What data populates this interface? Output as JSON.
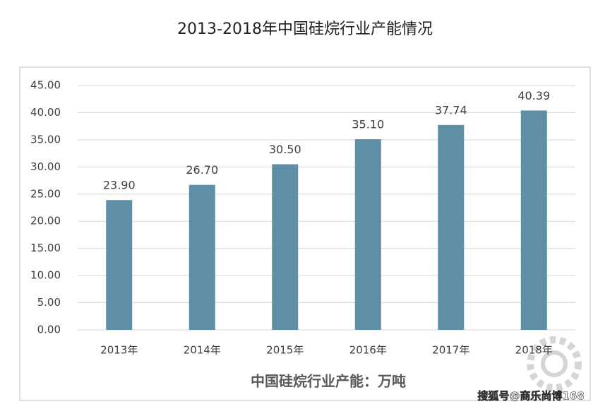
{
  "chart_data": {
    "type": "bar",
    "title": "2013-2018年中国硅烷行业产能情况",
    "x_label": "中国硅烷行业产能：万吨",
    "categories": [
      "2013年",
      "2014年",
      "2015年",
      "2016年",
      "2017年",
      "2018年"
    ],
    "values": [
      23.9,
      26.7,
      30.5,
      35.1,
      37.74,
      40.39
    ],
    "value_labels": [
      "23.90",
      "26.70",
      "30.50",
      "35.10",
      "37.74",
      "40.39"
    ],
    "color": "#5e8fa6",
    "ylim": [
      0,
      45
    ],
    "yticks": [
      {
        "value": 0,
        "label": "0.00"
      },
      {
        "value": 5,
        "label": "5.00"
      },
      {
        "value": 10,
        "label": "10.00"
      },
      {
        "value": 15,
        "label": "15.00"
      },
      {
        "value": 20,
        "label": "20.00"
      },
      {
        "value": 25,
        "label": "25.00"
      },
      {
        "value": 30,
        "label": "30.00"
      },
      {
        "value": 35,
        "label": "35.00"
      },
      {
        "value": 40,
        "label": "40.00"
      },
      {
        "value": 45,
        "label": "45.00"
      }
    ],
    "grid": true,
    "watermark": "搜狐号@商乐尚博168"
  }
}
